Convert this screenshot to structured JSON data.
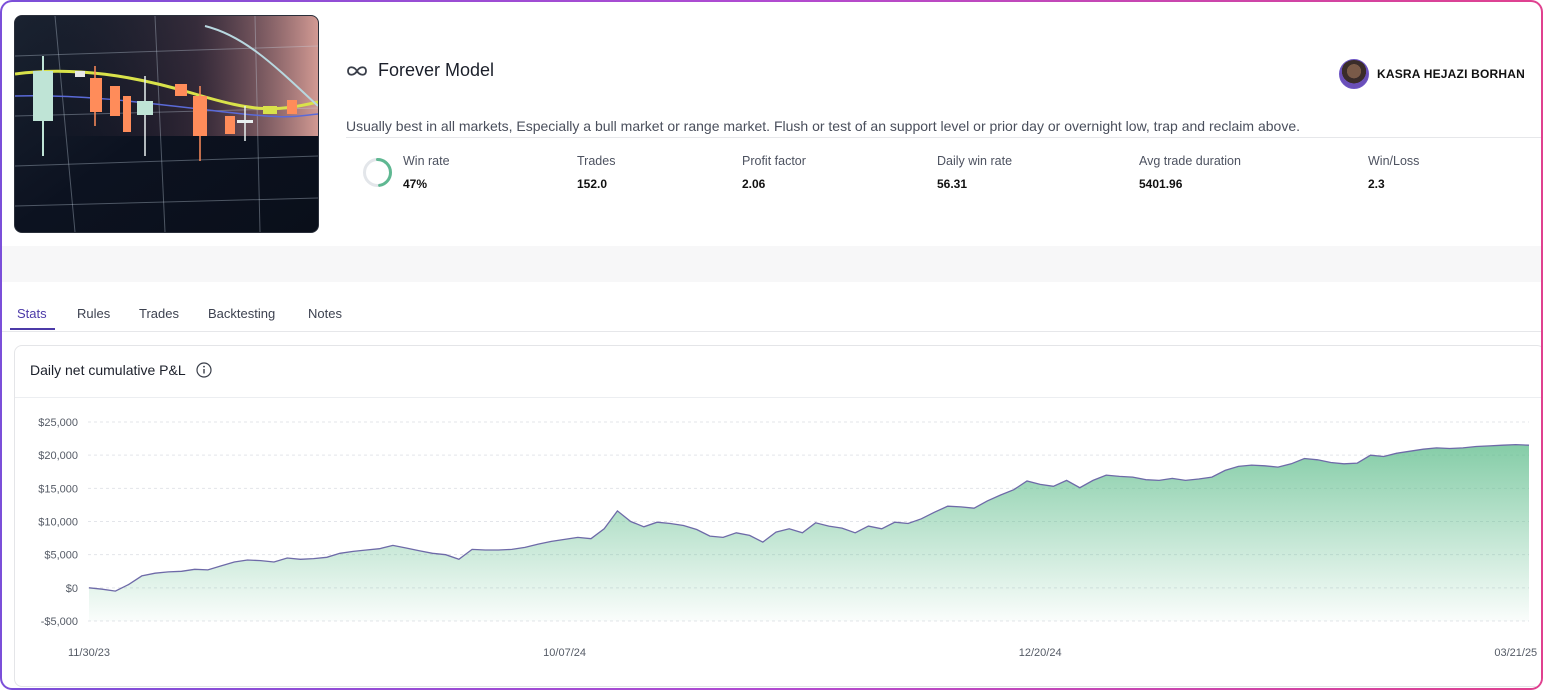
{
  "model": {
    "title": "Forever Model",
    "description": "Usually best in all markets, Especially a bull market or range market. Flush or test of an support level or prior day or overnight low, trap and reclaim above.",
    "author": "KASRA HEJAZI BORHAN"
  },
  "stats": [
    {
      "label": "Win rate",
      "value": "47%"
    },
    {
      "label": "Trades",
      "value": "152.0"
    },
    {
      "label": "Profit factor",
      "value": "2.06"
    },
    {
      "label": "Daily win rate",
      "value": "56.31"
    },
    {
      "label": "Avg trade duration",
      "value": "5401.96"
    },
    {
      "label": "Win/Loss",
      "value": "2.3"
    }
  ],
  "win_rate_fraction": 0.47,
  "tabs": [
    "Stats",
    "Rules",
    "Trades",
    "Backtesting",
    "Notes"
  ],
  "active_tab": "Stats",
  "chart_card": {
    "title": "Daily net cumulative P&L"
  },
  "colors": {
    "accent": "#4c3aa8",
    "line": "#6e6aa8",
    "fill": "#5cbc8a",
    "ring": "#5fb892"
  },
  "chart_data": {
    "type": "area",
    "title": "Daily net cumulative P&L",
    "y_tick_labels": [
      "-$5,000",
      "$0",
      "$5,000",
      "$10,000",
      "$15,000",
      "$20,000",
      "$25,000"
    ],
    "y_ticks": [
      -5000,
      0,
      5000,
      10000,
      15000,
      20000,
      25000
    ],
    "ylim": [
      -5000,
      25000
    ],
    "x_tick_labels": [
      "11/30/23",
      "10/07/24",
      "12/20/24",
      "03/21/25"
    ],
    "x_tick_index": [
      0,
      36,
      72,
      108
    ],
    "grid": true,
    "series": [
      {
        "values": [
          0,
          -200,
          -500,
          500,
          1800,
          2200,
          2400,
          2500,
          2800,
          2700,
          3300,
          3900,
          4200,
          4100,
          3900,
          4500,
          4300,
          4400,
          4600,
          5200,
          5500,
          5700,
          5900,
          6400,
          6000,
          5600,
          5200,
          5000,
          4300,
          5800,
          5700,
          5700,
          5800,
          6100,
          6600,
          7000,
          7300,
          7600,
          7400,
          8900,
          11600,
          10000,
          9200,
          9900,
          9700,
          9400,
          8800,
          7800,
          7600,
          8300,
          7900,
          6900,
          8400,
          8900,
          8300,
          9800,
          9300,
          9000,
          8300,
          9300,
          8900,
          9900,
          9700,
          10400,
          11400,
          12300,
          12200,
          12000,
          13100,
          14000,
          14800,
          16100,
          15600,
          15300,
          16200,
          15100,
          16200,
          17000,
          16800,
          16700,
          16300,
          16200,
          16500,
          16200,
          16400,
          16700,
          17700,
          18300,
          18500,
          18400,
          18200,
          18700,
          19500,
          19300,
          18900,
          18700,
          18800,
          20000,
          19800,
          20300,
          20600,
          20900,
          21100,
          21000,
          21100,
          21300,
          21400,
          21500,
          21600,
          21500
        ]
      }
    ]
  }
}
